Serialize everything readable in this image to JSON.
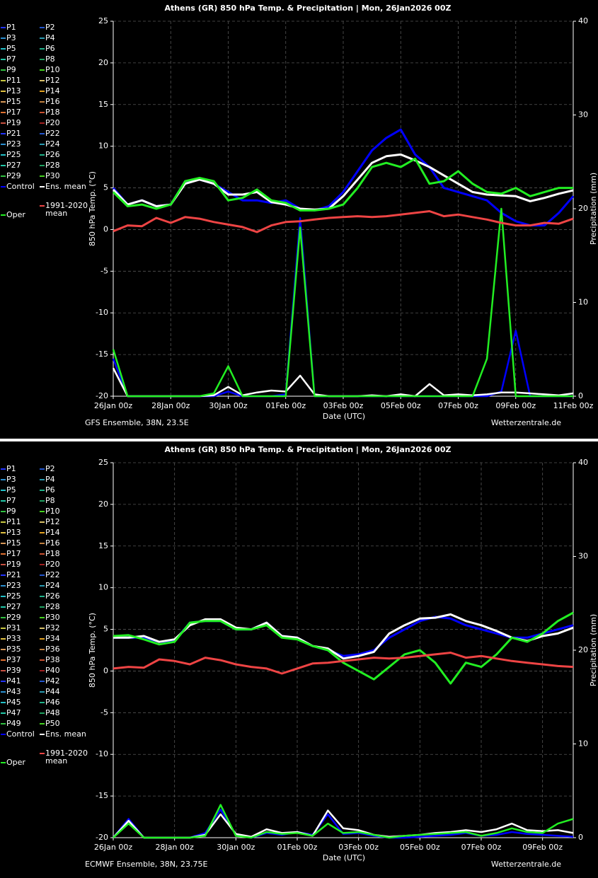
{
  "chart_data": [
    {
      "type": "line",
      "title": "Athens  (GR)  850 hPa Temp. & Precipitation | Mon, 26Jan2026 00Z",
      "source": "GFS Ensemble, 38N, 23.5E",
      "credit": "Wetterzentrale.de",
      "xlabel": "Date (UTC)",
      "ylabel": "850 hPa Temp. (°C)",
      "y2label": "Precipitation (mm)",
      "categories": [
        "26Jan 00z",
        null,
        null,
        null,
        "28Jan 00z",
        null,
        null,
        null,
        "30Jan 00z",
        null,
        null,
        null,
        "01Feb 00z",
        null,
        null,
        null,
        "03Feb 00z",
        null,
        null,
        null,
        "05Feb 00z",
        null,
        null,
        null,
        "07Feb 00z",
        null,
        null,
        null,
        "09Feb 00z",
        null,
        null,
        null,
        "11Feb 00z"
      ],
      "ylim": [
        -20,
        25
      ],
      "yticks": [
        -20,
        -15,
        -10,
        -5,
        0,
        5,
        10,
        15,
        20,
        25
      ],
      "y2lim": [
        0,
        40
      ],
      "y2ticks": [
        0,
        10,
        20,
        30,
        40
      ],
      "grid": true,
      "members": [
        {
          "name": "P1",
          "color": "#2233ff"
        },
        {
          "name": "P2",
          "color": "#2255cc"
        },
        {
          "name": "P3",
          "color": "#2a8fd0"
        },
        {
          "name": "P4",
          "color": "#2a9ab0"
        },
        {
          "name": "P5",
          "color": "#22c0c8"
        },
        {
          "name": "P6",
          "color": "#20b088"
        },
        {
          "name": "P7",
          "color": "#22c8a8"
        },
        {
          "name": "P8",
          "color": "#20a060"
        },
        {
          "name": "P9",
          "color": "#30c040"
        },
        {
          "name": "P10",
          "color": "#44d020"
        },
        {
          "name": "P11",
          "color": "#c8c840"
        },
        {
          "name": "P12",
          "color": "#d8c068"
        },
        {
          "name": "P13",
          "color": "#e0c040"
        },
        {
          "name": "P14",
          "color": "#e0a020"
        },
        {
          "name": "P15",
          "color": "#d89858"
        },
        {
          "name": "P16",
          "color": "#c08040"
        },
        {
          "name": "P17",
          "color": "#e07030"
        },
        {
          "name": "P18",
          "color": "#c85030"
        },
        {
          "name": "P19",
          "color": "#c85040"
        },
        {
          "name": "P20",
          "color": "#a02020"
        },
        {
          "name": "P21",
          "color": "#2233ff"
        },
        {
          "name": "P22",
          "color": "#2255cc"
        },
        {
          "name": "P23",
          "color": "#2a8fd0"
        },
        {
          "name": "P24",
          "color": "#2a9ab0"
        },
        {
          "name": "P25",
          "color": "#22c0c8"
        },
        {
          "name": "P26",
          "color": "#20b088"
        },
        {
          "name": "P27",
          "color": "#22c8a8"
        },
        {
          "name": "P28",
          "color": "#20a060"
        },
        {
          "name": "P29",
          "color": "#30c040"
        },
        {
          "name": "P30",
          "color": "#44d020"
        }
      ],
      "series": [
        {
          "name": "Control",
          "color": "#0000ff",
          "values": [
            5,
            3,
            3.5,
            2.8,
            3,
            5.8,
            6,
            5.5,
            4.5,
            3.5,
            3.5,
            3.2,
            3.5,
            2.5,
            2.3,
            2.8,
            4.5,
            7,
            9.5,
            11,
            12,
            9,
            7.5,
            5,
            4.5,
            4,
            3.5,
            2,
            1,
            0.5,
            0.5,
            2,
            4
          ],
          "precip": [
            4,
            0,
            0,
            0,
            0,
            0,
            0,
            0,
            0.5,
            0,
            0,
            0,
            0.2,
            19,
            0,
            0,
            0,
            0,
            0,
            0,
            0,
            0,
            0,
            0,
            0,
            0,
            0,
            0.5,
            7,
            0,
            0,
            0,
            0
          ]
        },
        {
          "name": "Ens. mean",
          "color": "#ffffff",
          "values": [
            4.8,
            3,
            3.5,
            2.8,
            3,
            5.5,
            6,
            5.5,
            4.2,
            4.2,
            4.5,
            3.3,
            3,
            2.5,
            2.4,
            2.5,
            4,
            6,
            8,
            8.8,
            9,
            8.3,
            7.5,
            6.5,
            5.5,
            4.5,
            4.2,
            4.1,
            4,
            3.4,
            3.8,
            4.3,
            4.7
          ],
          "precip": [
            3,
            0,
            0,
            0,
            0,
            0,
            0,
            0.1,
            1,
            0.1,
            0.4,
            0.6,
            0.5,
            2.2,
            0.2,
            0,
            0,
            0,
            0.1,
            0,
            0.2,
            0,
            1.3,
            0.1,
            0.2,
            0.1,
            0.2,
            0.4,
            0.4,
            0.3,
            0.2,
            0.1,
            0.3
          ]
        },
        {
          "name": "Oper",
          "color": "#22ee22",
          "values": [
            4.5,
            2.8,
            3,
            2.5,
            3,
            5.8,
            6.2,
            5.8,
            3.5,
            3.8,
            4.8,
            3.5,
            3.2,
            2.3,
            2.3,
            2.5,
            3,
            5,
            7.5,
            8,
            7.5,
            8.5,
            5.5,
            5.8,
            7,
            5.5,
            4.5,
            4.3,
            5,
            4,
            4.5,
            5,
            5
          ],
          "precip": [
            5,
            0,
            0,
            0,
            0,
            0,
            0,
            0.3,
            3.2,
            0,
            0,
            0,
            0,
            18,
            0,
            0,
            0,
            0,
            0,
            0,
            0,
            0,
            0,
            0,
            0,
            0,
            4,
            20,
            0,
            0,
            0,
            0,
            0
          ]
        },
        {
          "name": "1991-2020 mean",
          "color": "#ee4444",
          "values": [
            -0.2,
            0.5,
            0.4,
            1.4,
            0.8,
            1.5,
            1.3,
            0.9,
            0.6,
            0.3,
            -0.3,
            0.5,
            0.9,
            1,
            1.2,
            1.4,
            1.5,
            1.6,
            1.5,
            1.6,
            1.8,
            2,
            2.2,
            1.6,
            1.8,
            1.5,
            1.2,
            0.8,
            0.5,
            0.5,
            0.8,
            0.7,
            1.3
          ]
        }
      ]
    },
    {
      "type": "line",
      "title": "Athens  (GR)  850 hPa Temp. & Precipitation | Mon, 26Jan2026 00Z",
      "source": "ECMWF Ensemble, 38N, 23.75E",
      "credit": "Wetterzentrale.de",
      "xlabel": "Date (UTC)",
      "ylabel": "850 hPa Temp. (°C)",
      "y2label": "Precipitation (mm)",
      "categories": [
        "26Jan 00z",
        null,
        null,
        null,
        "28Jan 00z",
        null,
        null,
        null,
        "30Jan 00z",
        null,
        null,
        null,
        "01Feb 00z",
        null,
        null,
        null,
        "03Feb 00z",
        null,
        null,
        null,
        "05Feb 00z",
        null,
        null,
        null,
        "07Feb 00z",
        null,
        null,
        null,
        "09Feb 00z",
        null,
        null
      ],
      "ylim": [
        -20,
        25
      ],
      "yticks": [
        -20,
        -15,
        -10,
        -5,
        0,
        5,
        10,
        15,
        20,
        25
      ],
      "y2lim": [
        0,
        40
      ],
      "y2ticks": [
        0,
        10,
        20,
        30,
        40
      ],
      "grid": true,
      "members": [
        {
          "name": "P1",
          "color": "#2233ff"
        },
        {
          "name": "P2",
          "color": "#2255cc"
        },
        {
          "name": "P3",
          "color": "#2a8fd0"
        },
        {
          "name": "P4",
          "color": "#2a9ab0"
        },
        {
          "name": "P5",
          "color": "#22c0c8"
        },
        {
          "name": "P6",
          "color": "#20b088"
        },
        {
          "name": "P7",
          "color": "#22c8a8"
        },
        {
          "name": "P8",
          "color": "#20a060"
        },
        {
          "name": "P9",
          "color": "#30c040"
        },
        {
          "name": "P10",
          "color": "#44d020"
        },
        {
          "name": "P11",
          "color": "#c8c840"
        },
        {
          "name": "P12",
          "color": "#d8c068"
        },
        {
          "name": "P13",
          "color": "#e0c040"
        },
        {
          "name": "P14",
          "color": "#e0a020"
        },
        {
          "name": "P15",
          "color": "#d89858"
        },
        {
          "name": "P16",
          "color": "#c08040"
        },
        {
          "name": "P17",
          "color": "#e07030"
        },
        {
          "name": "P18",
          "color": "#c85030"
        },
        {
          "name": "P19",
          "color": "#c85040"
        },
        {
          "name": "P20",
          "color": "#a02020"
        },
        {
          "name": "P21",
          "color": "#2233ff"
        },
        {
          "name": "P22",
          "color": "#2255cc"
        },
        {
          "name": "P23",
          "color": "#2a8fd0"
        },
        {
          "name": "P24",
          "color": "#2a9ab0"
        },
        {
          "name": "P25",
          "color": "#22c0c8"
        },
        {
          "name": "P26",
          "color": "#20b088"
        },
        {
          "name": "P27",
          "color": "#22c8a8"
        },
        {
          "name": "P28",
          "color": "#20a060"
        },
        {
          "name": "P29",
          "color": "#30c040"
        },
        {
          "name": "P30",
          "color": "#44d020"
        },
        {
          "name": "P31",
          "color": "#c8c840"
        },
        {
          "name": "P32",
          "color": "#d8c068"
        },
        {
          "name": "P33",
          "color": "#e0c040"
        },
        {
          "name": "P34",
          "color": "#e0a020"
        },
        {
          "name": "P35",
          "color": "#d89858"
        },
        {
          "name": "P36",
          "color": "#c08040"
        },
        {
          "name": "P37",
          "color": "#e07030"
        },
        {
          "name": "P38",
          "color": "#c85030"
        },
        {
          "name": "P39",
          "color": "#c85040"
        },
        {
          "name": "P40",
          "color": "#a02020"
        },
        {
          "name": "P41",
          "color": "#2233ff"
        },
        {
          "name": "P42",
          "color": "#2255cc"
        },
        {
          "name": "P43",
          "color": "#2a8fd0"
        },
        {
          "name": "P44",
          "color": "#2a9ab0"
        },
        {
          "name": "P45",
          "color": "#22c0c8"
        },
        {
          "name": "P46",
          "color": "#20b088"
        },
        {
          "name": "P47",
          "color": "#22c8a8"
        },
        {
          "name": "P48",
          "color": "#20a060"
        },
        {
          "name": "P49",
          "color": "#30c040"
        },
        {
          "name": "P50",
          "color": "#44d020"
        }
      ],
      "series": [
        {
          "name": "Control",
          "color": "#0000ff",
          "values": [
            4,
            4,
            4,
            3.5,
            3.6,
            5.8,
            6,
            6,
            5,
            5,
            5.8,
            4.2,
            4,
            3,
            2.5,
            1.8,
            2,
            2.5,
            4,
            5,
            6,
            6.5,
            6.3,
            5.5,
            5,
            4.5,
            4,
            4,
            4.5,
            5,
            5.5
          ],
          "precip": [
            0,
            2,
            0,
            0,
            0,
            0,
            0.5,
            3,
            0.3,
            0,
            0.5,
            0.3,
            0.6,
            0.3,
            2.5,
            0.4,
            0.5,
            0.2,
            0,
            0,
            0.1,
            0.2,
            0.3,
            0.5,
            0.2,
            0.3,
            0.6,
            0.4,
            0.3,
            0.2,
            0.1
          ]
        },
        {
          "name": "Ens. mean",
          "color": "#ffffff",
          "values": [
            4,
            4,
            4.2,
            3.5,
            3.8,
            5.5,
            6.2,
            6.2,
            5.2,
            5,
            5.8,
            4.2,
            4,
            3,
            2.7,
            1.5,
            1.8,
            2.3,
            4.5,
            5.5,
            6.3,
            6.4,
            6.8,
            6,
            5.5,
            4.8,
            4,
            3.6,
            4.2,
            4.5,
            5.2
          ],
          "precip": [
            0,
            1.8,
            0,
            0,
            0,
            0,
            0.3,
            2.5,
            0.4,
            0.1,
            0.9,
            0.5,
            0.6,
            0.2,
            2.9,
            1,
            0.8,
            0.3,
            0.1,
            0.2,
            0.3,
            0.5,
            0.6,
            0.8,
            0.6,
            0.9,
            1.5,
            0.8,
            0.7,
            0.8,
            0.5
          ]
        },
        {
          "name": "Oper",
          "color": "#22ee22",
          "values": [
            4.2,
            4.3,
            3.8,
            3.2,
            3.5,
            5.8,
            6,
            6,
            5,
            5,
            5.5,
            4,
            3.8,
            3,
            2.5,
            1,
            0,
            -1,
            0.5,
            2,
            2.5,
            1,
            -1.5,
            1,
            0.5,
            2,
            4,
            3.5,
            4.5,
            6,
            7
          ],
          "precip": [
            0,
            1.5,
            0,
            0,
            0,
            0,
            0.2,
            3.5,
            0.2,
            0,
            0.6,
            0.4,
            0.5,
            0.2,
            1.5,
            0.5,
            0.6,
            0.3,
            0,
            0.2,
            0.3,
            0.4,
            0.5,
            0.6,
            0.2,
            0.5,
            1,
            0.6,
            0.5,
            1.5,
            2
          ]
        },
        {
          "name": "1991-2020 mean",
          "color": "#ee4444",
          "values": [
            0.3,
            0.5,
            0.4,
            1.4,
            1.2,
            0.8,
            1.6,
            1.3,
            0.8,
            0.5,
            0.3,
            -0.3,
            0.3,
            0.9,
            1,
            1.2,
            1.4,
            1.6,
            1.5,
            1.6,
            1.8,
            2,
            2.2,
            1.6,
            1.8,
            1.5,
            1.2,
            1,
            0.8,
            0.6,
            0.5
          ]
        }
      ]
    }
  ]
}
